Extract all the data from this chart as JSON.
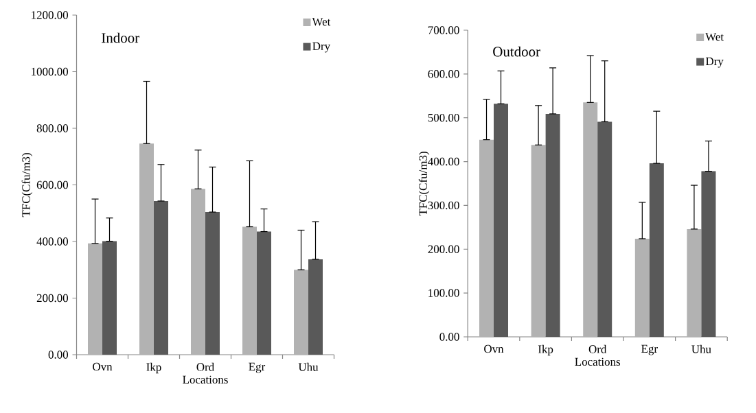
{
  "chart_data": [
    {
      "type": "bar",
      "title": "Indoor",
      "xlabel": "Locations",
      "ylabel": "TFC(Cfu/m3)",
      "categories": [
        "Ovn",
        "Ikp",
        "Ord",
        "Egr",
        "Uhu"
      ],
      "series": [
        {
          "name": "Wet",
          "color": "#b2b2b2",
          "values": [
            393,
            746,
            586,
            452,
            300
          ],
          "errors": [
            [
              393,
              550
            ],
            [
              746,
              966
            ],
            [
              586,
              723
            ],
            [
              452,
              685
            ],
            [
              300,
              440
            ]
          ]
        },
        {
          "name": "Dry",
          "color": "#595959",
          "values": [
            401,
            543,
            504,
            435,
            337
          ],
          "errors": [
            [
              401,
              483
            ],
            [
              543,
              672
            ],
            [
              504,
              663
            ],
            [
              435,
              515
            ],
            [
              337,
              470
            ]
          ]
        }
      ],
      "ylim": [
        0,
        1200
      ],
      "yticks": [
        {
          "value": 0,
          "label": "0.00"
        },
        {
          "value": 200,
          "label": "200.00"
        },
        {
          "value": 400,
          "label": "400.00"
        },
        {
          "value": 600,
          "label": "600.00"
        },
        {
          "value": 800,
          "label": "800.00"
        },
        {
          "value": 1000,
          "label": "1000.00"
        },
        {
          "value": 1200,
          "label": "1200.00"
        }
      ],
      "legend": "top right"
    },
    {
      "type": "bar",
      "title": "Outdoor",
      "xlabel": "Locations",
      "ylabel": "TFC(Cfu/m3)",
      "categories": [
        "Ovn",
        "Ikp",
        "Ord",
        "Egr",
        "Uhu"
      ],
      "series": [
        {
          "name": "Wet",
          "color": "#b2b2b2",
          "values": [
            450,
            438,
            535,
            224,
            246
          ],
          "errors": [
            [
              450,
              542
            ],
            [
              438,
              528
            ],
            [
              535,
              642
            ],
            [
              224,
              307
            ],
            [
              246,
              346
            ]
          ]
        },
        {
          "name": "Dry",
          "color": "#595959",
          "values": [
            532,
            509,
            491,
            396,
            378
          ],
          "errors": [
            [
              532,
              607
            ],
            [
              509,
              614
            ],
            [
              491,
              630
            ],
            [
              396,
              515
            ],
            [
              378,
              447
            ]
          ]
        }
      ],
      "ylim": [
        0,
        700
      ],
      "yticks": [
        {
          "value": 0,
          "label": "0.00"
        },
        {
          "value": 100,
          "label": "100.00"
        },
        {
          "value": 200,
          "label": "200.00"
        },
        {
          "value": 300,
          "label": "300.00"
        },
        {
          "value": 400,
          "label": "400.00"
        },
        {
          "value": 500,
          "label": "500.00"
        },
        {
          "value": 600,
          "label": "600.00"
        },
        {
          "value": 700,
          "label": "700.00"
        }
      ],
      "legend": "top right"
    }
  ]
}
